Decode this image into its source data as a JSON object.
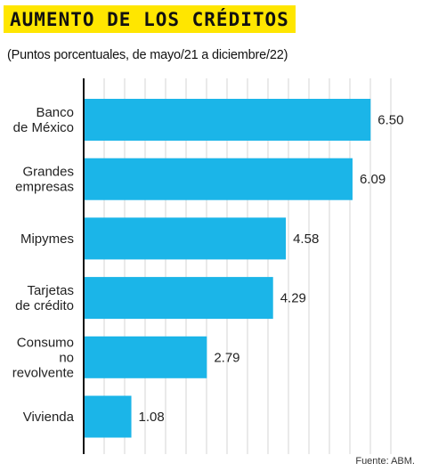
{
  "chart_data": {
    "type": "bar",
    "orientation": "horizontal",
    "title": "AUMENTO DE LOS CRÉDITOS",
    "subtitle": "(Puntos porcentuales, de mayo/21 a diciembre/22)",
    "categories": [
      [
        "Banco",
        "de México"
      ],
      [
        "Grandes",
        "empresas"
      ],
      [
        "Mipymes"
      ],
      [
        "Tarjetas",
        "de crédito"
      ],
      [
        "Consumo",
        "no",
        "revolvente"
      ],
      [
        "Vivienda"
      ]
    ],
    "values": [
      6.5,
      6.09,
      4.58,
      4.29,
      2.79,
      1.08
    ],
    "value_labels": [
      "6.50",
      "6.09",
      "4.58",
      "4.29",
      "2.79",
      "1.08"
    ],
    "xlim": [
      0,
      7.22
    ],
    "grid": "vertical",
    "bar_color": "#1bb5e8",
    "source": "Fuente: ABM."
  }
}
